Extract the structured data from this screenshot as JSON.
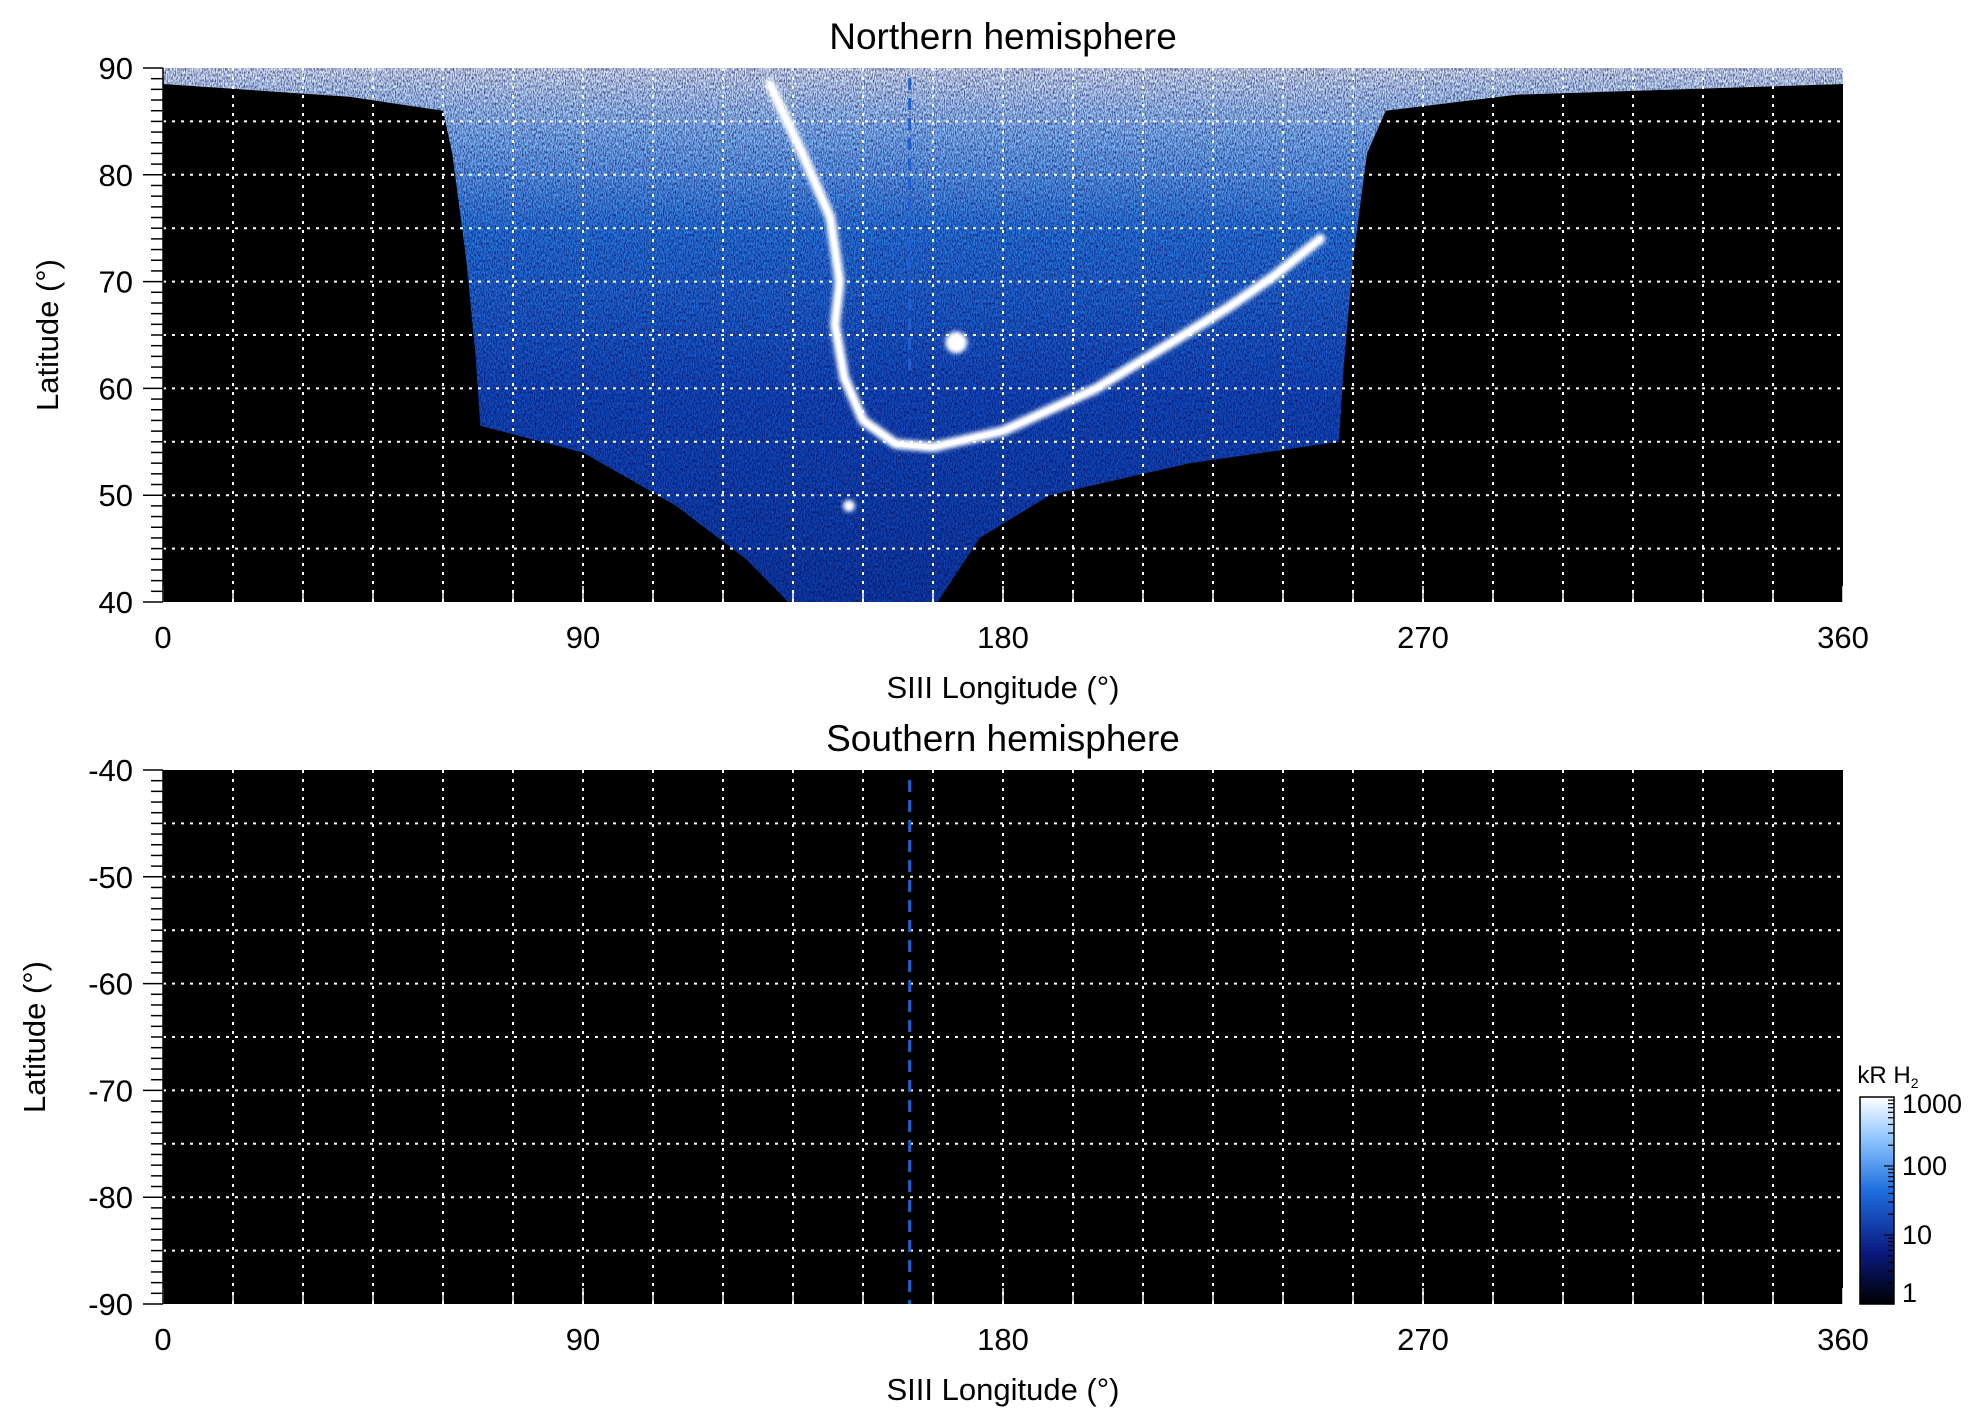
{
  "chart_data": [
    {
      "type": "heatmap",
      "title": "Northern hemisphere",
      "xlabel": "SIII Longitude (°)",
      "ylabel": "Latitude (°)",
      "xlim": [
        0,
        360
      ],
      "ylim": [
        40,
        90
      ],
      "x_ticks": [
        "0",
        "90",
        "180",
        "270",
        "360"
      ],
      "x_tick_values": [
        0,
        90,
        180,
        270,
        360
      ],
      "y_ticks": [
        "40",
        "50",
        "60",
        "70",
        "80",
        "90"
      ],
      "y_tick_values": [
        40,
        50,
        60,
        70,
        80,
        90
      ],
      "grid": true,
      "grid_x_step": 15,
      "grid_y_step": 5,
      "dashed_line_longitude": 160,
      "emission_region": {
        "outline": [
          [
            0,
            88.5
          ],
          [
            40,
            87.3
          ],
          [
            60,
            86
          ],
          [
            62,
            82
          ],
          [
            65,
            72
          ],
          [
            67,
            63
          ],
          [
            68,
            56.5
          ],
          [
            90,
            54
          ],
          [
            110,
            49
          ],
          [
            125,
            44
          ],
          [
            134,
            40
          ],
          [
            166,
            40
          ],
          [
            175,
            46
          ],
          [
            190,
            50
          ],
          [
            220,
            53
          ],
          [
            252,
            55
          ],
          [
            253,
            62
          ],
          [
            255,
            72
          ],
          [
            258,
            82
          ],
          [
            262,
            86
          ],
          [
            290,
            87.5
          ],
          [
            360,
            88.5
          ],
          [
            360,
            90
          ],
          [
            0,
            90
          ]
        ],
        "main_oval": [
          [
            130,
            88.5
          ],
          [
            137,
            82
          ],
          [
            143,
            76
          ],
          [
            145,
            70
          ],
          [
            144,
            66
          ],
          [
            146,
            61
          ],
          [
            150,
            57
          ],
          [
            157,
            54.8
          ],
          [
            165,
            54.5
          ],
          [
            180,
            56
          ],
          [
            200,
            60
          ],
          [
            215,
            64
          ],
          [
            228,
            67.5
          ],
          [
            238,
            70.5
          ],
          [
            248,
            74
          ]
        ],
        "bright_spots": [
          {
            "lon": 170,
            "lat": 64.3
          },
          {
            "lon": 147,
            "lat": 49
          }
        ]
      }
    },
    {
      "type": "heatmap",
      "title": "Southern hemisphere",
      "xlabel": "SIII Longitude (°)",
      "ylabel": "Latitude (°)",
      "xlim": [
        0,
        360
      ],
      "ylim": [
        -90,
        -40
      ],
      "x_ticks": [
        "0",
        "90",
        "180",
        "270",
        "360"
      ],
      "x_tick_values": [
        0,
        90,
        180,
        270,
        360
      ],
      "y_ticks": [
        "-40",
        "-50",
        "-60",
        "-70",
        "-80",
        "-90"
      ],
      "y_tick_values": [
        -40,
        -50,
        -60,
        -70,
        -80,
        -90
      ],
      "grid": true,
      "grid_x_step": 15,
      "grid_y_step": 5,
      "dashed_line_longitude": 160
    }
  ],
  "colorbar": {
    "title": "kR H",
    "title_subscript": "2",
    "scale": "log",
    "range": [
      1,
      1000
    ],
    "ticks": [
      "1",
      "10",
      "100",
      "1000"
    ],
    "tick_values": [
      1,
      10,
      100,
      1000
    ],
    "colors": [
      "#000000",
      "#0a1a80",
      "#1f6fe0",
      "#8fc6ff",
      "#ffffff"
    ]
  }
}
